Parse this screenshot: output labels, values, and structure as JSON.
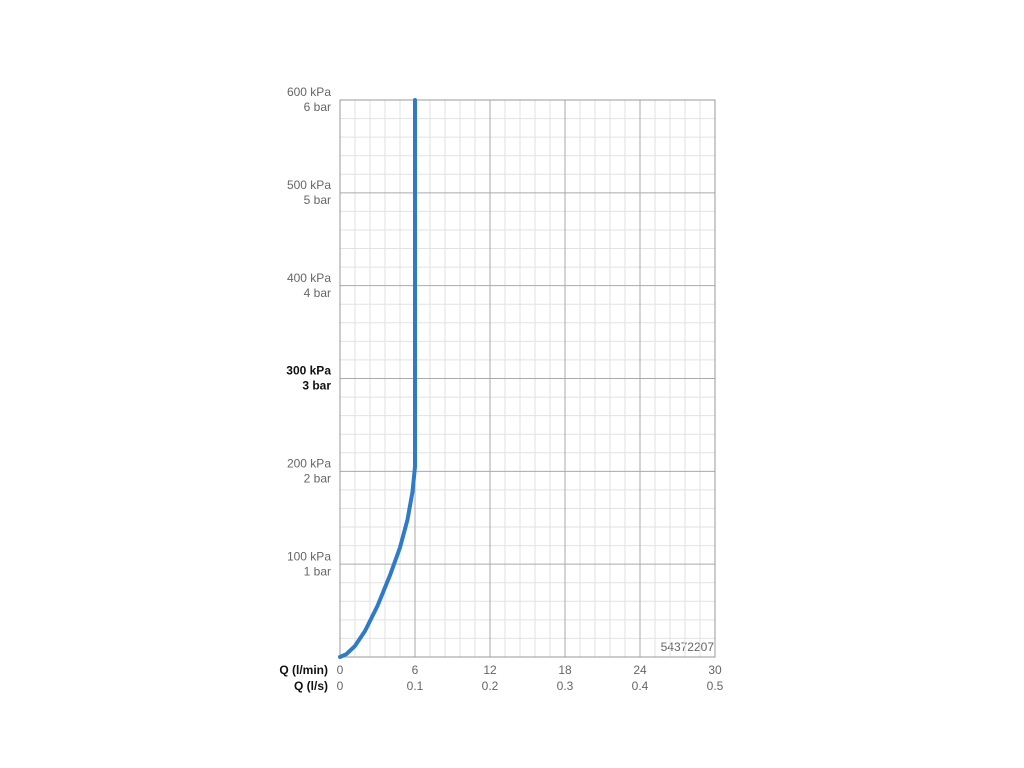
{
  "chart_data": {
    "type": "line",
    "x": [
      0,
      0.5,
      1.2,
      2,
      3,
      4,
      4.8,
      5.4,
      5.8,
      6,
      6
    ],
    "values": [
      0,
      3,
      12,
      28,
      55,
      88,
      118,
      148,
      178,
      205,
      600
    ],
    "color": "#2f7bc8",
    "xlabel": "Q (l/min)",
    "x2label": "Q (l/s)",
    "xlim": [
      0,
      30
    ],
    "xticks": [
      0,
      6,
      12,
      18,
      24,
      30
    ],
    "x2lim": [
      0,
      0.5
    ],
    "x2ticks": [
      0,
      0.1,
      0.2,
      0.3,
      0.4,
      0.5
    ],
    "ylim": [
      0,
      600
    ],
    "yticks": [
      {
        "value": 100,
        "label": "100 kPa"
      },
      {
        "value": 200,
        "label": "200 kPa"
      },
      {
        "value": 300,
        "label": "300 kPa"
      },
      {
        "value": 400,
        "label": "400 kPa"
      },
      {
        "value": 500,
        "label": "500 kPa"
      },
      {
        "value": 600,
        "label": "600 kPa"
      }
    ],
    "y2lim": [
      0,
      6
    ],
    "y2ticks": [
      {
        "value": 1,
        "label": "1 bar"
      },
      {
        "value": 2,
        "label": "2 bar"
      },
      {
        "value": 3,
        "label": "3 bar"
      },
      {
        "value": 4,
        "label": "4 bar"
      },
      {
        "value": 5,
        "label": "5 bar"
      },
      {
        "value": 6,
        "label": "6 bar"
      }
    ],
    "bold_ytick": 300,
    "grid": true,
    "minor_divisions": 5,
    "annotation": "54372207"
  }
}
